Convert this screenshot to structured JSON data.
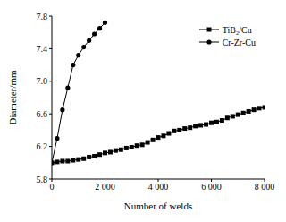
{
  "chart_data": {
    "type": "line",
    "x_label": "Number of welds",
    "y_label": "Diameter/mm",
    "legend": "upper right",
    "grid": false,
    "xlim": [
      0,
      8000
    ],
    "xticks": [
      0,
      {
        "value": 2000,
        "label": "2 000"
      },
      {
        "value": 4000,
        "label": "4 000"
      },
      {
        "value": 6000,
        "label": "6 000"
      },
      {
        "value": 8000,
        "label": "8 000"
      }
    ],
    "ylim": [
      5.8,
      7.8
    ],
    "yticks": [
      5.8,
      6.2,
      6.6,
      {
        "value": 7,
        "label": "7.0"
      },
      7.4,
      7.8
    ],
    "series": [
      {
        "name": "TiB₂/Cu",
        "color": "#000000",
        "marker": "square",
        "line_style": "solid",
        "x": [
          0,
          200,
          400,
          600,
          800,
          1000,
          1200,
          1400,
          1600,
          1800,
          2000,
          2200,
          2400,
          2600,
          2800,
          3000,
          3200,
          3400,
          3600,
          3800,
          4000,
          4200,
          4400,
          4600,
          4800,
          5000,
          5200,
          5400,
          5600,
          5800,
          6000,
          6200,
          6400,
          6600,
          6800,
          7000,
          7200,
          7400,
          7600,
          7800,
          8000
        ],
        "values": [
          6.0,
          6.01,
          6.02,
          6.02,
          6.03,
          6.04,
          6.05,
          6.07,
          6.08,
          6.1,
          6.12,
          6.13,
          6.15,
          6.16,
          6.18,
          6.19,
          6.21,
          6.22,
          6.25,
          6.28,
          6.31,
          6.33,
          6.36,
          6.39,
          6.4,
          6.42,
          6.43,
          6.45,
          6.46,
          6.47,
          6.49,
          6.5,
          6.52,
          6.55,
          6.57,
          6.59,
          6.61,
          6.63,
          6.65,
          6.67,
          6.68
        ]
      },
      {
        "name": "Cr-Zr-Cu",
        "color": "#000000",
        "marker": "circle",
        "line_style": "solid",
        "x": [
          0,
          200,
          400,
          600,
          800,
          1000,
          1200,
          1400,
          1600,
          1800,
          2000
        ],
        "values": [
          6.0,
          6.3,
          6.65,
          6.92,
          7.2,
          7.32,
          7.42,
          7.5,
          7.58,
          7.65,
          7.72
        ]
      }
    ]
  }
}
